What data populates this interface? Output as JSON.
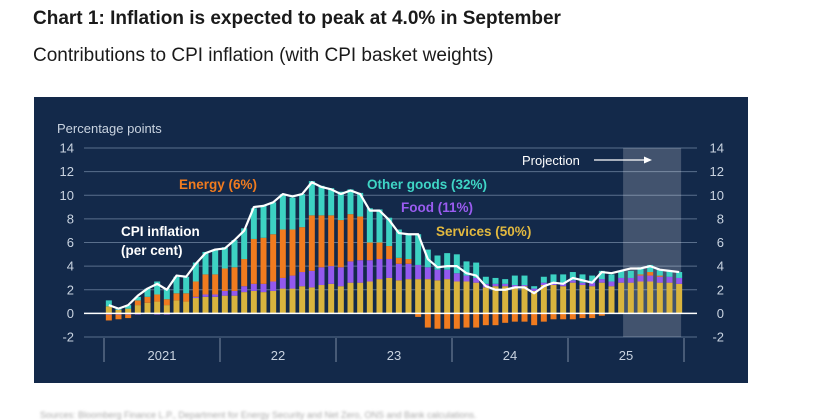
{
  "header": {
    "title": "Chart 1: Inflation is expected to peak at 4.0% in September",
    "subtitle": "Contributions to CPI inflation (with CPI basket weights)"
  },
  "footer": {
    "text": "Sources: Bloomberg Finance L.P., Department for Energy Security and Net Zero, ONS and Bank calculations."
  },
  "chart_data": {
    "type": "bar",
    "stacked": true,
    "title": "Chart 1: Inflation is expected to peak at 4.0% in September",
    "subtitle": "Contributions to CPI inflation (with CPI basket weights)",
    "ylabel": "Percentage points",
    "ylim": [
      -2,
      14
    ],
    "yticks": [
      14,
      12,
      10,
      8,
      6,
      4,
      2,
      0,
      -2
    ],
    "xtick_labels": [
      "2021",
      "22",
      "23",
      "24",
      "25"
    ],
    "x_start": "Jan 2021",
    "x_end": "Dec 2025",
    "projection": {
      "label": "Projection",
      "start_index": 54,
      "end_index": 59
    },
    "grid": true,
    "legend": "inline-labels",
    "annotations": [
      {
        "text": "Energy (6%)",
        "color": "#f07b1f"
      },
      {
        "text": "Other goods (32%)",
        "color": "#3fd6c6"
      },
      {
        "text": "Food (11%)",
        "color": "#9a5cf0"
      },
      {
        "text": "Services (50%)",
        "color": "#e2b93f"
      },
      {
        "text": "CPI inflation\n(per cent)",
        "color": "#ffffff"
      }
    ],
    "series": [
      {
        "name": "Services (50%)",
        "color": "#d9b43e",
        "values": [
          0.6,
          0.3,
          0.4,
          0.7,
          0.9,
          1.0,
          0.7,
          1.1,
          1.0,
          1.3,
          1.4,
          1.4,
          1.5,
          1.5,
          1.8,
          1.9,
          1.8,
          1.9,
          2.1,
          2.1,
          2.3,
          2.2,
          2.4,
          2.5,
          2.3,
          2.6,
          2.6,
          2.7,
          2.9,
          3.0,
          2.8,
          2.9,
          2.9,
          2.9,
          2.8,
          2.9,
          2.7,
          2.7,
          2.6,
          2.2,
          2.3,
          2.3,
          2.2,
          2.3,
          1.9,
          2.4,
          2.4,
          2.3,
          2.6,
          2.4,
          2.3,
          2.6,
          2.3,
          2.6,
          2.6,
          2.7,
          2.7,
          2.6,
          2.6,
          2.5
        ]
      },
      {
        "name": "Food (11%)",
        "color": "#9359ee",
        "values": [
          -0.1,
          -0.1,
          -0.1,
          -0.1,
          0,
          -0.1,
          -0.1,
          0,
          0,
          0.1,
          0.2,
          0.2,
          0.4,
          0.4,
          0.5,
          0.6,
          0.7,
          0.8,
          0.9,
          1.1,
          1.2,
          1.4,
          1.5,
          1.5,
          1.6,
          1.8,
          1.9,
          1.8,
          1.7,
          1.6,
          1.4,
          1.3,
          1.2,
          1.0,
          0.9,
          0.8,
          0.7,
          0.5,
          0.4,
          0.3,
          0.2,
          0.2,
          0.2,
          0.1,
          0.2,
          0.2,
          0.2,
          0.2,
          0.2,
          0.2,
          0.3,
          0.3,
          0.4,
          0.4,
          0.4,
          0.5,
          0.5,
          0.5,
          0.5,
          0.5
        ]
      },
      {
        "name": "Energy (6%)",
        "color": "#f07b1f",
        "values": [
          -0.5,
          -0.4,
          -0.3,
          0.4,
          0.5,
          0.6,
          0.5,
          0.6,
          0.7,
          1.3,
          1.7,
          1.7,
          1.9,
          2.0,
          2.3,
          3.8,
          3.9,
          4.0,
          4.1,
          3.9,
          3.8,
          4.7,
          4.4,
          4.3,
          4.0,
          4.0,
          3.7,
          1.5,
          1.4,
          1.1,
          0.5,
          0.4,
          -0.3,
          -1.2,
          -1.3,
          -1.3,
          -1.3,
          -1.2,
          -1.2,
          -1.0,
          -1.0,
          -0.8,
          -0.7,
          -0.7,
          -1.0,
          -0.7,
          -0.5,
          -0.5,
          -0.5,
          -0.4,
          -0.4,
          -0.2,
          0,
          0,
          0,
          0.1,
          0.3,
          0.1,
          0,
          0
        ]
      },
      {
        "name": "Other goods (32%)",
        "color": "#3dd2c3",
        "values": [
          0.5,
          0.2,
          0.3,
          0.3,
          0.7,
          1.1,
          0.9,
          1.4,
          1.4,
          1.6,
          1.9,
          2.1,
          1.8,
          2.3,
          2.6,
          2.6,
          2.7,
          2.7,
          3.0,
          2.7,
          2.8,
          2.9,
          2.5,
          2.3,
          2.4,
          2.1,
          2.0,
          2.9,
          2.8,
          2.4,
          2.4,
          2.1,
          2.6,
          1.5,
          1.2,
          1.4,
          1.6,
          1.2,
          1.3,
          0.6,
          0.5,
          0.4,
          0.8,
          0.8,
          0.2,
          0.5,
          0.7,
          0.8,
          0.7,
          0.7,
          0.6,
          0.7,
          0.6,
          0.6,
          0.6,
          0.6,
          0.6,
          0.5,
          0.5,
          0.5
        ]
      }
    ],
    "line": {
      "name": "CPI inflation (per cent)",
      "color": "#ffffff",
      "values": [
        0.7,
        0.4,
        0.7,
        1.5,
        2.1,
        2.5,
        2.0,
        3.2,
        3.1,
        4.2,
        5.1,
        5.4,
        5.5,
        6.2,
        7.0,
        9.0,
        9.1,
        9.4,
        10.1,
        9.9,
        10.1,
        11.1,
        10.7,
        10.5,
        10.1,
        10.4,
        10.1,
        8.7,
        8.7,
        7.9,
        6.8,
        6.7,
        6.7,
        4.6,
        3.9,
        4.0,
        4.0,
        3.4,
        3.2,
        2.3,
        2.0,
        2.0,
        2.2,
        2.2,
        1.7,
        2.3,
        2.6,
        2.5,
        3.0,
        2.8,
        2.6,
        3.5,
        3.4,
        3.6,
        3.8,
        3.8,
        4.0,
        3.7,
        3.6,
        3.5
      ]
    }
  }
}
